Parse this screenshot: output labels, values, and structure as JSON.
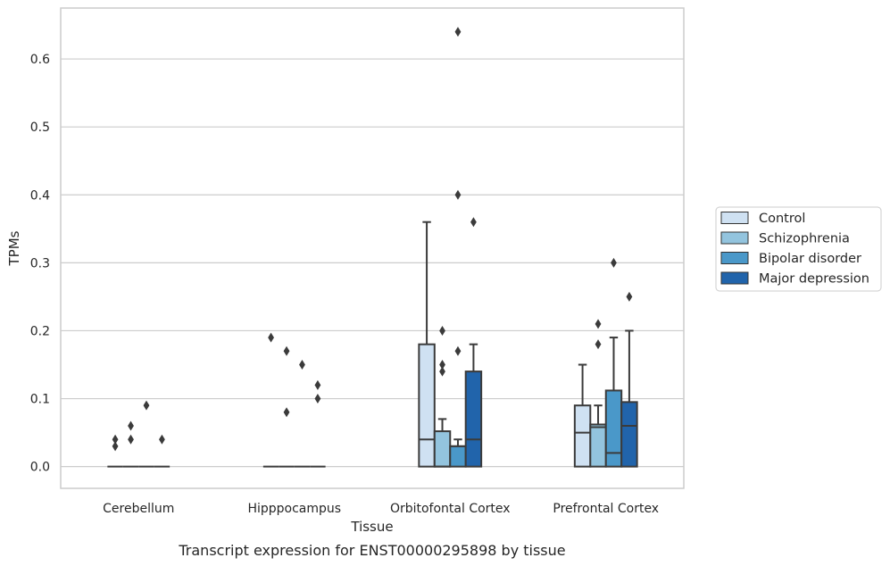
{
  "caption": "Transcript expression for ENST00000295898 by tissue",
  "colors": {
    "Control": "#cfe1f2",
    "Schizophrenia": "#93c4de",
    "Bipolar disorder": "#4a98c9",
    "Major depression": "#2164ab",
    "box_edge": "#3b3b3b",
    "grid": "#cccccc",
    "frame": "#cccccc"
  },
  "chart_data": {
    "type": "box",
    "title": "",
    "xlabel": "Tissue",
    "ylabel": "TPMs",
    "ylim": [
      -0.032,
      0.675
    ],
    "yticks": [
      0.0,
      0.1,
      0.2,
      0.3,
      0.4,
      0.5,
      0.6
    ],
    "ytick_labels": [
      "0.0",
      "0.1",
      "0.2",
      "0.3",
      "0.4",
      "0.5",
      "0.6"
    ],
    "grid": true,
    "legend_position": "outside-right",
    "categories": [
      "Cerebellum",
      "Hipppocampus",
      "Orbitofontal Cortex",
      "Prefrontal Cortex"
    ],
    "series": [
      {
        "name": "Control",
        "boxes": [
          {
            "q1": 0,
            "median": 0,
            "q3": 0,
            "whislo": 0,
            "whishi": 0,
            "fliers": [
              0.04,
              0.03
            ]
          },
          {
            "q1": 0,
            "median": 0,
            "q3": 0,
            "whislo": 0,
            "whishi": 0,
            "fliers": [
              0.19
            ]
          },
          {
            "q1": 0,
            "median": 0.04,
            "q3": 0.18,
            "whislo": 0,
            "whishi": 0.36,
            "fliers": []
          },
          {
            "q1": 0,
            "median": 0.05,
            "q3": 0.09,
            "whislo": 0,
            "whishi": 0.15,
            "fliers": []
          }
        ]
      },
      {
        "name": "Schizophrenia",
        "boxes": [
          {
            "q1": 0,
            "median": 0,
            "q3": 0,
            "whislo": 0,
            "whishi": 0,
            "fliers": [
              0.06,
              0.04
            ]
          },
          {
            "q1": 0,
            "median": 0,
            "q3": 0,
            "whislo": 0,
            "whishi": 0,
            "fliers": [
              0.17,
              0.08
            ]
          },
          {
            "q1": 0,
            "median": 0,
            "q3": 0.052,
            "whislo": 0,
            "whishi": 0.07,
            "fliers": [
              0.2,
              0.15,
              0.14
            ]
          },
          {
            "q1": 0,
            "median": 0.058,
            "q3": 0.062,
            "whislo": 0,
            "whishi": 0.09,
            "fliers": [
              0.21,
              0.18
            ]
          }
        ]
      },
      {
        "name": "Bipolar disorder",
        "boxes": [
          {
            "q1": 0,
            "median": 0,
            "q3": 0,
            "whislo": 0,
            "whishi": 0,
            "fliers": [
              0.09
            ]
          },
          {
            "q1": 0,
            "median": 0,
            "q3": 0,
            "whislo": 0,
            "whishi": 0,
            "fliers": [
              0.15
            ]
          },
          {
            "q1": 0,
            "median": 0.03,
            "q3": 0.03,
            "whislo": 0,
            "whishi": 0.04,
            "fliers": [
              0.64,
              0.4,
              0.17
            ]
          },
          {
            "q1": 0,
            "median": 0.02,
            "q3": 0.112,
            "whislo": 0,
            "whishi": 0.19,
            "fliers": [
              0.3
            ]
          }
        ]
      },
      {
        "name": "Major depression",
        "boxes": [
          {
            "q1": 0,
            "median": 0,
            "q3": 0,
            "whislo": 0,
            "whishi": 0,
            "fliers": [
              0.04
            ]
          },
          {
            "q1": 0,
            "median": 0,
            "q3": 0,
            "whislo": 0,
            "whishi": 0,
            "fliers": [
              0.12,
              0.1
            ]
          },
          {
            "q1": 0,
            "median": 0.04,
            "q3": 0.14,
            "whislo": 0,
            "whishi": 0.18,
            "fliers": [
              0.36
            ]
          },
          {
            "q1": 0,
            "median": 0.06,
            "q3": 0.095,
            "whislo": 0,
            "whishi": 0.2,
            "fliers": [
              0.25
            ]
          }
        ]
      }
    ]
  }
}
